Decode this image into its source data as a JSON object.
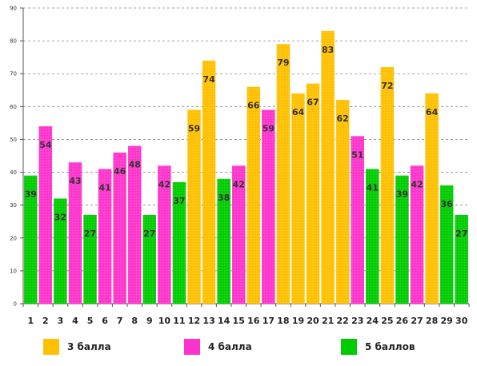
{
  "chart_data": {
    "type": "bar",
    "categories": [
      "1",
      "2",
      "3",
      "4",
      "5",
      "6",
      "7",
      "8",
      "9",
      "10",
      "11",
      "12",
      "13",
      "14",
      "15",
      "16",
      "17",
      "18",
      "19",
      "20",
      "21",
      "22",
      "23",
      "24",
      "25",
      "26",
      "27",
      "28",
      "29",
      "30"
    ],
    "values": [
      39,
      54,
      32,
      43,
      27,
      41,
      46,
      48,
      27,
      42,
      37,
      59,
      74,
      38,
      42,
      66,
      59,
      79,
      64,
      67,
      83,
      62,
      51,
      41,
      72,
      39,
      42,
      64,
      36,
      27
    ],
    "bar_groups": [
      "5",
      "4",
      "5",
      "4",
      "5",
      "4",
      "4",
      "4",
      "5",
      "4",
      "5",
      "3",
      "3",
      "5",
      "4",
      "3",
      "4",
      "3",
      "3",
      "3",
      "3",
      "3",
      "4",
      "5",
      "3",
      "5",
      "4",
      "3",
      "5",
      "5"
    ],
    "yticks": [
      "0",
      "10",
      "20",
      "30",
      "40",
      "50",
      "60",
      "70",
      "80",
      "90"
    ],
    "ylim": [
      0,
      90
    ],
    "grid": true,
    "legend_position": "bottom",
    "legend": [
      {
        "key": "3",
        "label": "3 балла",
        "color": "#FFC000"
      },
      {
        "key": "4",
        "label": "4 балла",
        "color": "#FF33CC"
      },
      {
        "key": "5",
        "label": "5 баллов",
        "color": "#00CC00"
      }
    ]
  }
}
